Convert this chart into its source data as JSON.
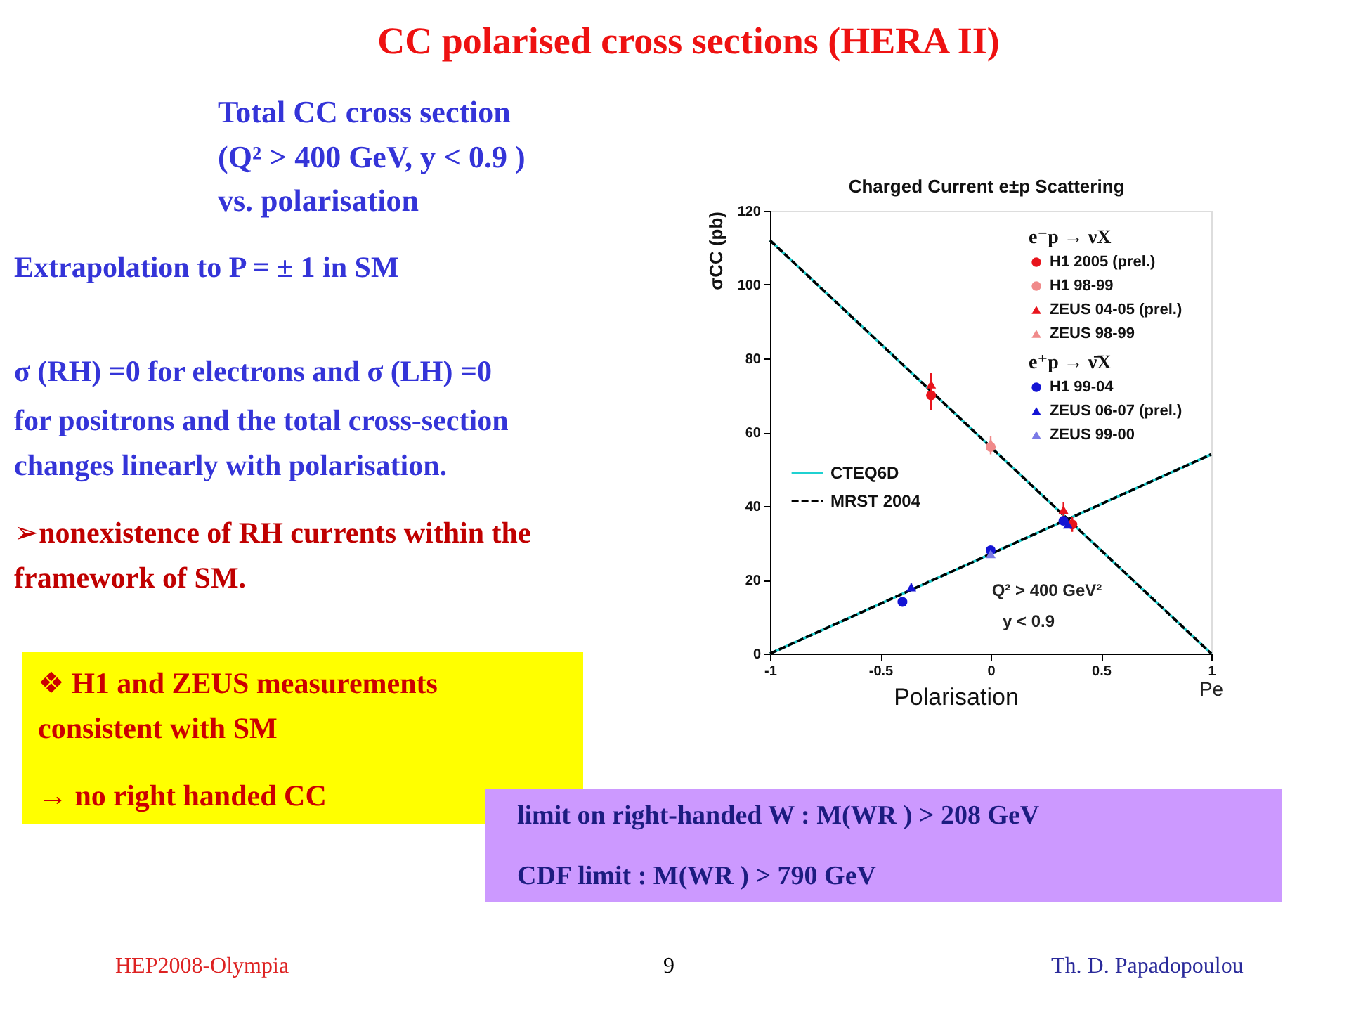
{
  "chart_data": {
    "type": "scatter",
    "title": "CC polarised cross sections (HERA II)",
    "subtitle": "Charged Current e±p Scattering",
    "xlabel": "Polarisation",
    "ylabel": "σCC (pb)",
    "xlim": [
      -1,
      1
    ],
    "ylim": [
      0,
      120
    ],
    "xticks": [
      -1,
      -0.5,
      0,
      0.5,
      1
    ],
    "yticks": [
      0,
      20,
      40,
      60,
      80,
      100,
      120
    ],
    "legend": "top right",
    "series": [
      {
        "name": "CTEQ6D",
        "type": "line",
        "color": "#1fd1d1",
        "line_style": "solid",
        "x": [
          -1,
          1
        ],
        "values": [
          112,
          0
        ]
      },
      {
        "type": "line",
        "color": "#1fd1d1",
        "line_style": "solid",
        "x": [
          -1,
          1
        ],
        "values": [
          0,
          54
        ]
      },
      {
        "name": "MRST 2004",
        "type": "line",
        "color": "#000000",
        "line_style": "dashed",
        "x": [
          -1,
          1
        ],
        "values": [
          112,
          0
        ]
      },
      {
        "type": "line",
        "color": "#000000",
        "line_style": "dashed",
        "x": [
          -1,
          1
        ],
        "values": [
          0,
          54
        ]
      },
      {
        "name": "H1 2005 (prel.)",
        "color": "#e8141c",
        "marker": "circle",
        "x": [
          -0.27,
          0.37
        ],
        "values": [
          70,
          35
        ],
        "errors": [
          4,
          2
        ]
      },
      {
        "name": "H1 98-99",
        "color": "#f08a8a",
        "marker": "circle",
        "x": [
          0
        ],
        "values": [
          56
        ],
        "errors": [
          2
        ]
      },
      {
        "name": "ZEUS 04-05 (prel.)",
        "color": "#e8141c",
        "marker": "triangle",
        "x": [
          -0.27,
          0.33
        ],
        "values": [
          73,
          39
        ],
        "errors": [
          3,
          2
        ]
      },
      {
        "name": "ZEUS 98-99",
        "color": "#f08a8a",
        "marker": "triangle",
        "x": [
          0
        ],
        "values": [
          57
        ],
        "errors": [
          2
        ]
      },
      {
        "name": "H1 99-04",
        "color": "#1414d4",
        "marker": "circle",
        "x": [
          -0.4,
          0,
          0.33
        ],
        "values": [
          14,
          28,
          36
        ],
        "errors": [
          1,
          1,
          1
        ]
      },
      {
        "name": "ZEUS 06-07 (prel.)",
        "color": "#1414d4",
        "marker": "triangle",
        "x": [
          -0.36,
          0.35
        ],
        "values": [
          18,
          35
        ],
        "errors": [
          1,
          1
        ]
      },
      {
        "name": "ZEUS 99-00",
        "color": "#7a7ae6",
        "marker": "triangle",
        "x": [
          0
        ],
        "values": [
          27
        ],
        "errors": [
          1
        ]
      }
    ],
    "annotations": [
      "e⁻p → νX",
      "e⁺p → ν̄X",
      "Q² > 400 GeV²",
      "y < 0.9",
      "Pe",
      "Total CC cross section",
      "(Q² > 400 GeV, y < 0.9 )",
      "vs. polarisation",
      "Extrapolation to P = ± 1  in SM",
      "σ (RH) =0 for electrons and σ (LH) =0",
      "for positrons and the total cross-section",
      "changes linearly with polarisation.",
      "➢nonexistence of RH currents within the",
      "framework of SM.",
      "❖  H1 and ZEUS measurements",
      "consistent  with SM",
      "→ no right handed  CC",
      "limit on right-handed W :  M(WR ) > 208 GeV",
      "CDF limit  : M(WR ) > 790 GeV",
      "HEP2008-Olympia",
      "9",
      "Th. D. Papadopoulou"
    ]
  }
}
